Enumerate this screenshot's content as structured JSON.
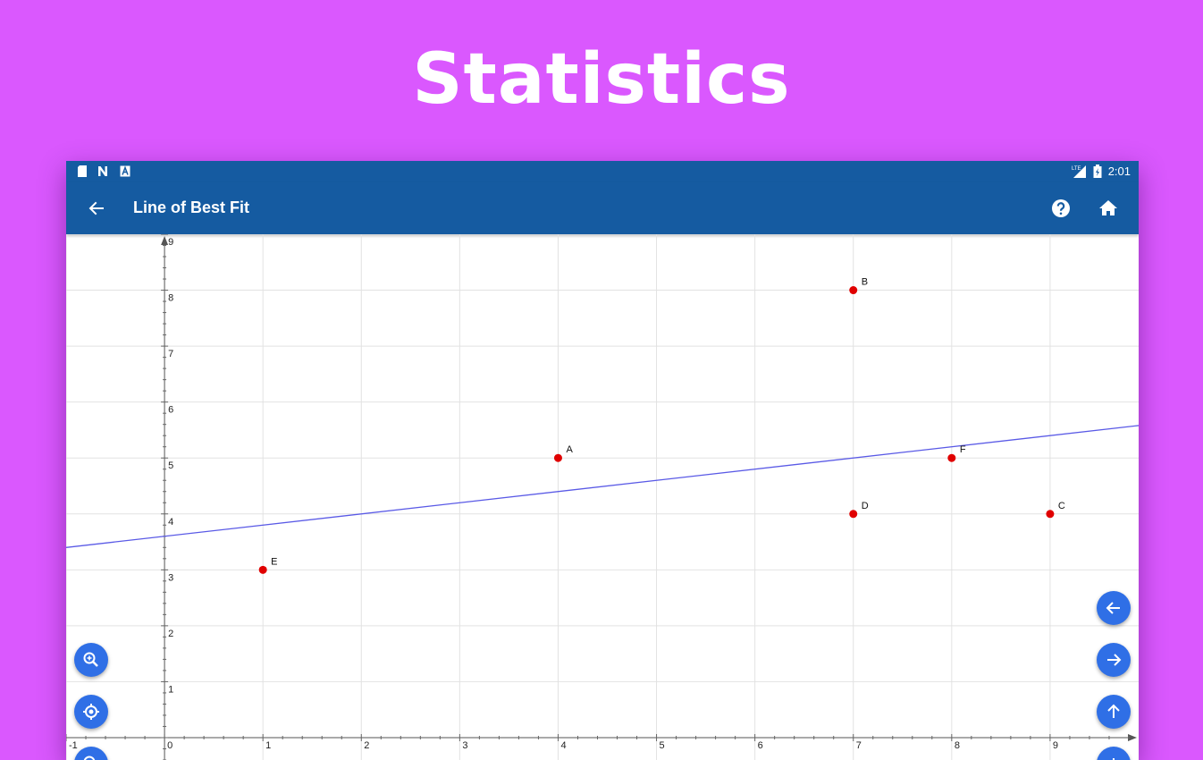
{
  "banner": {
    "title": "Statistics"
  },
  "status_bar": {
    "time": "2:01",
    "left_icons": [
      "sd-card-icon",
      "notification-n-icon",
      "notification-a-icon"
    ],
    "right_icons": [
      "lte-signal-icon",
      "battery-charging-icon"
    ]
  },
  "app_bar": {
    "title": "Line of Best Fit",
    "left_action": "back-arrow-icon",
    "right_actions": [
      "help-icon",
      "home-icon"
    ]
  },
  "colors": {
    "banner_background": "#DA58FE",
    "app_bar": "#155BA1",
    "point": "#E00000",
    "fit_line": "#5A5AE6",
    "fab": "#2F6FE6"
  },
  "fabs": {
    "left": [
      "zoom-in-icon",
      "locate-icon"
    ],
    "right": [
      "arrow-left-icon",
      "arrow-right-icon",
      "arrow-up-icon"
    ]
  },
  "chart_data": {
    "type": "scatter",
    "points": [
      {
        "label": "A",
        "x": 4,
        "y": 5
      },
      {
        "label": "B",
        "x": 7,
        "y": 8
      },
      {
        "label": "C",
        "x": 9,
        "y": 4
      },
      {
        "label": "D",
        "x": 7,
        "y": 4
      },
      {
        "label": "E",
        "x": 1,
        "y": 3
      },
      {
        "label": "F",
        "x": 8,
        "y": 5
      }
    ],
    "best_fit_line": {
      "slope": 0.2,
      "intercept": 3.6
    },
    "xlim": [
      -1,
      9.9
    ],
    "ylim": [
      -0.4,
      9
    ],
    "x_ticks": [
      "-1",
      "0",
      "1",
      "2",
      "3",
      "4",
      "5",
      "6",
      "7",
      "8",
      "9"
    ],
    "y_ticks": [
      "1",
      "2",
      "3",
      "4",
      "5",
      "6",
      "7",
      "8",
      "9"
    ],
    "grid": true
  }
}
